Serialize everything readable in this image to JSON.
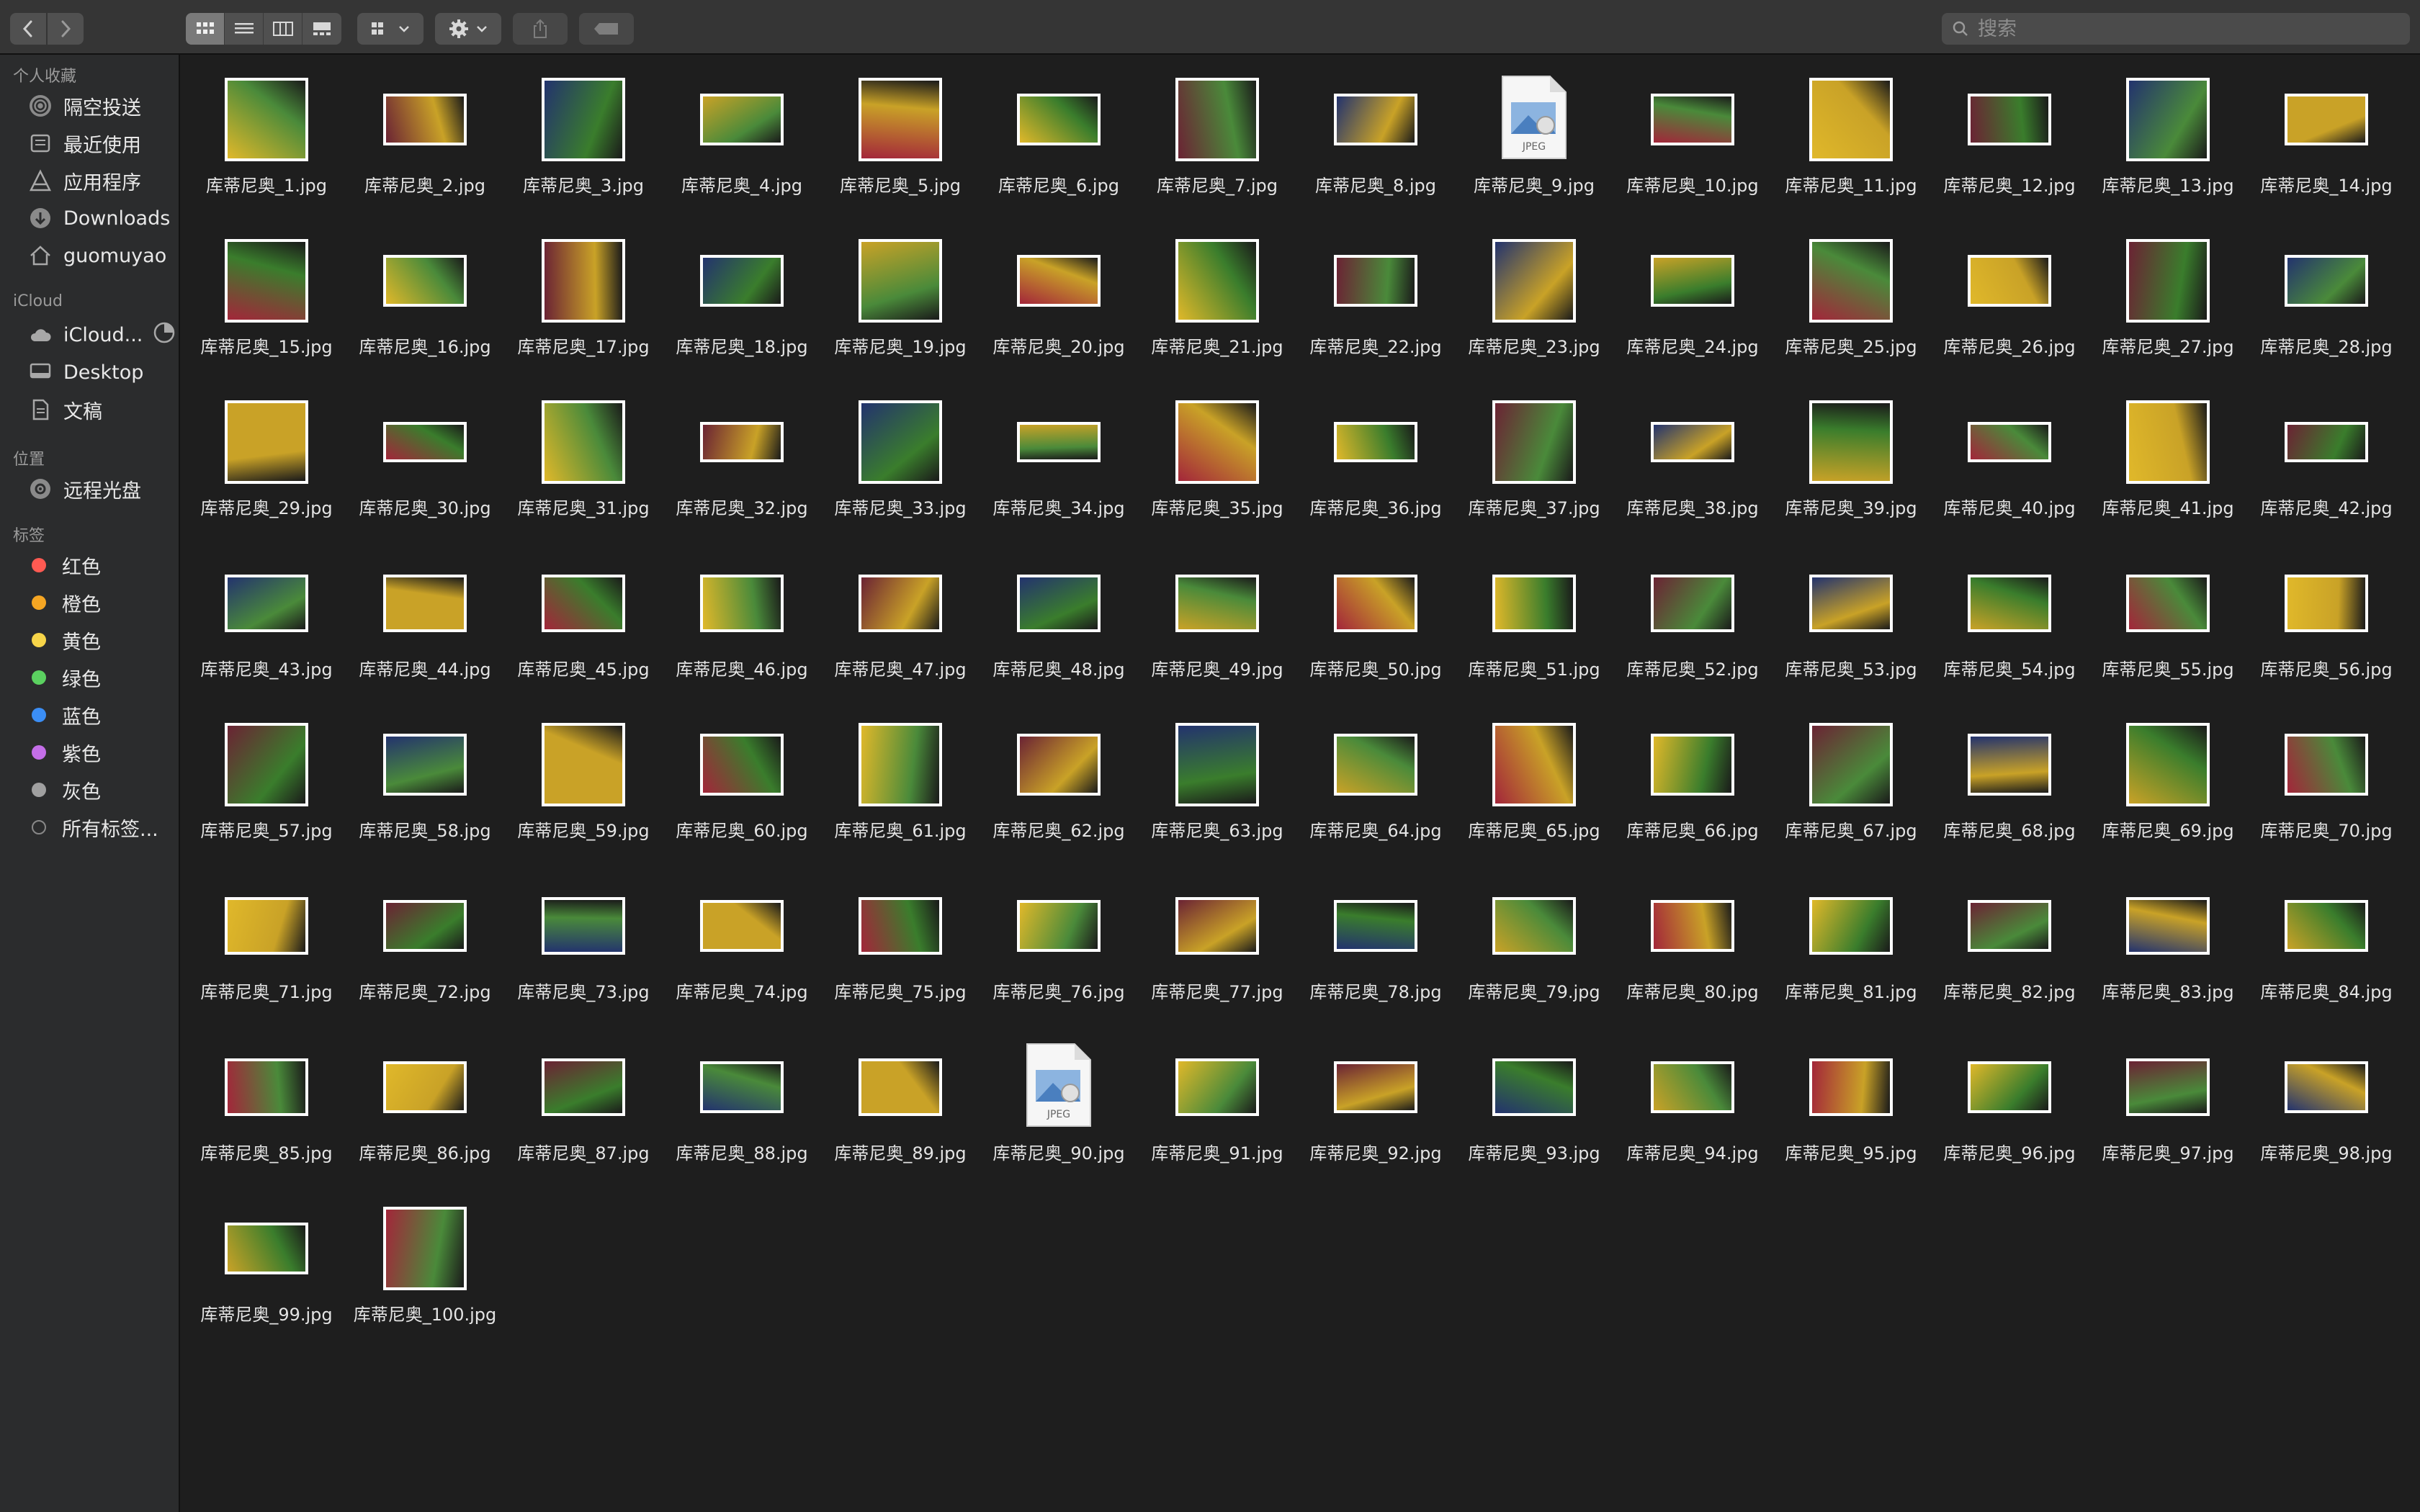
{
  "toolbar": {
    "back_icon": "chevron-left-icon",
    "forward_icon": "chevron-right-icon",
    "view_modes": [
      "icon-view-icon",
      "list-view-icon",
      "column-view-icon",
      "gallery-view-icon"
    ],
    "active_view": 0,
    "search_placeholder": "搜索"
  },
  "sidebar": {
    "sections": [
      {
        "title": "个人收藏",
        "items": [
          {
            "label": "隔空投送",
            "icon": "airdrop-icon"
          },
          {
            "label": "最近使用",
            "icon": "recents-icon"
          },
          {
            "label": "应用程序",
            "icon": "applications-icon"
          },
          {
            "label": "Downloads",
            "icon": "downloads-icon"
          },
          {
            "label": "guomuyao",
            "icon": "home-icon"
          }
        ]
      },
      {
        "title": "iCloud",
        "items": [
          {
            "label": "iCloud...",
            "icon": "cloud-icon"
          },
          {
            "label": "Desktop",
            "icon": "desktop-icon"
          },
          {
            "label": "文稿",
            "icon": "document-icon"
          }
        ]
      },
      {
        "title": "位置",
        "items": [
          {
            "label": "远程光盘",
            "icon": "disc-icon"
          }
        ]
      },
      {
        "title": "标签",
        "items": [
          {
            "label": "红色",
            "color": "#ff5a52"
          },
          {
            "label": "橙色",
            "color": "#f5a623"
          },
          {
            "label": "黄色",
            "color": "#f7d549"
          },
          {
            "label": "绿色",
            "color": "#5bd160"
          },
          {
            "label": "蓝色",
            "color": "#3b8ef5"
          },
          {
            "label": "紫色",
            "color": "#c46ee8"
          },
          {
            "label": "灰色",
            "color": "#a0a0a0"
          },
          {
            "label": "所有标签...",
            "color": "none"
          }
        ]
      }
    ]
  },
  "files": {
    "prefix": "库蒂尼奥_",
    "extension": ".jpg",
    "count": 100,
    "generic_icon_items": [
      9,
      90
    ],
    "generic_icon_label": "JPEG",
    "palette": [
      "#a3263a",
      "#1a2d6b",
      "#3a7d2c",
      "#e0b82a",
      "#b52a2a",
      "#2b4c9a",
      "#6b2334",
      "#4a8a3a",
      "#d8c23a",
      "#23336e",
      "#8a1e2e",
      "#2f6bb0",
      "#c9a227",
      "#5a1f3a",
      "#3a5a2a"
    ]
  }
}
